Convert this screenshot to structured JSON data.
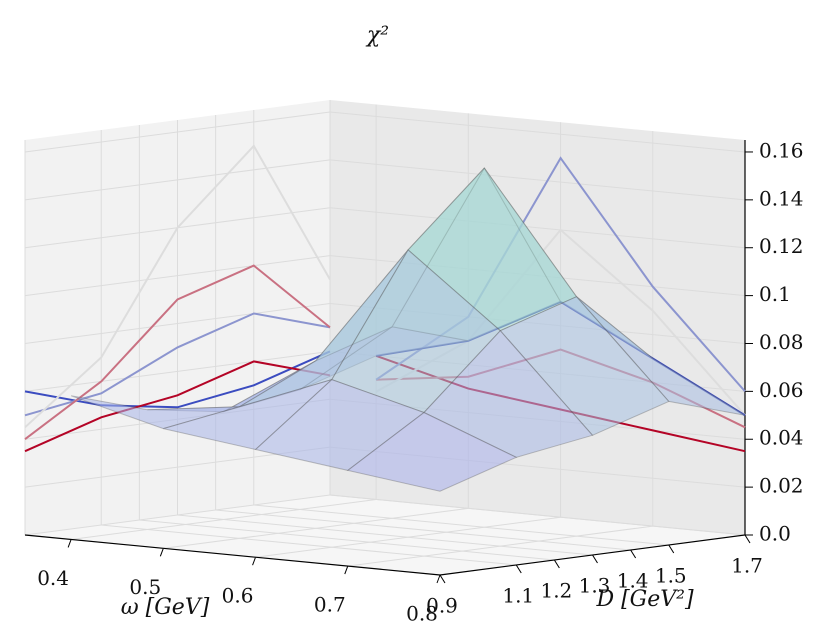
{
  "chart_data": {
    "type": "surface3d",
    "title": "χ²",
    "x_label": "ω [GeV]",
    "y_label": "D [GeV²]",
    "x": [
      0.4,
      0.5,
      0.6,
      0.7,
      0.8
    ],
    "y": [
      0.9,
      1.1,
      1.3,
      1.5,
      1.7
    ],
    "z": [
      [
        0.06,
        0.05,
        0.045,
        0.05,
        0.06
      ],
      [
        0.05,
        0.055,
        0.07,
        0.08,
        0.07
      ],
      [
        0.045,
        0.07,
        0.12,
        0.15,
        0.09
      ],
      [
        0.04,
        0.06,
        0.09,
        0.1,
        0.07
      ],
      [
        0.035,
        0.045,
        0.05,
        0.06,
        0.05
      ]
    ],
    "xlim": [
      0.35,
      0.8
    ],
    "ylim": [
      0.9,
      1.7
    ],
    "zlim": [
      0,
      0.165
    ],
    "xticks": [
      0.4,
      0.5,
      0.6,
      0.7,
      0.8
    ],
    "yticks": [
      0.9,
      1.1,
      1.2,
      1.3,
      1.4,
      1.5,
      1.7
    ],
    "zticks": [
      {
        "value": 0,
        "label": "0.0"
      },
      0.02,
      0.04,
      0.06,
      0.08,
      0.1,
      0.12,
      0.14,
      0.16
    ],
    "surface_colors": [
      "#a8a8ee",
      "#a6f0c8"
    ],
    "line_colors": [
      "#3b4cc0",
      "#dddddd",
      "#b40426"
    ],
    "grid": true
  }
}
